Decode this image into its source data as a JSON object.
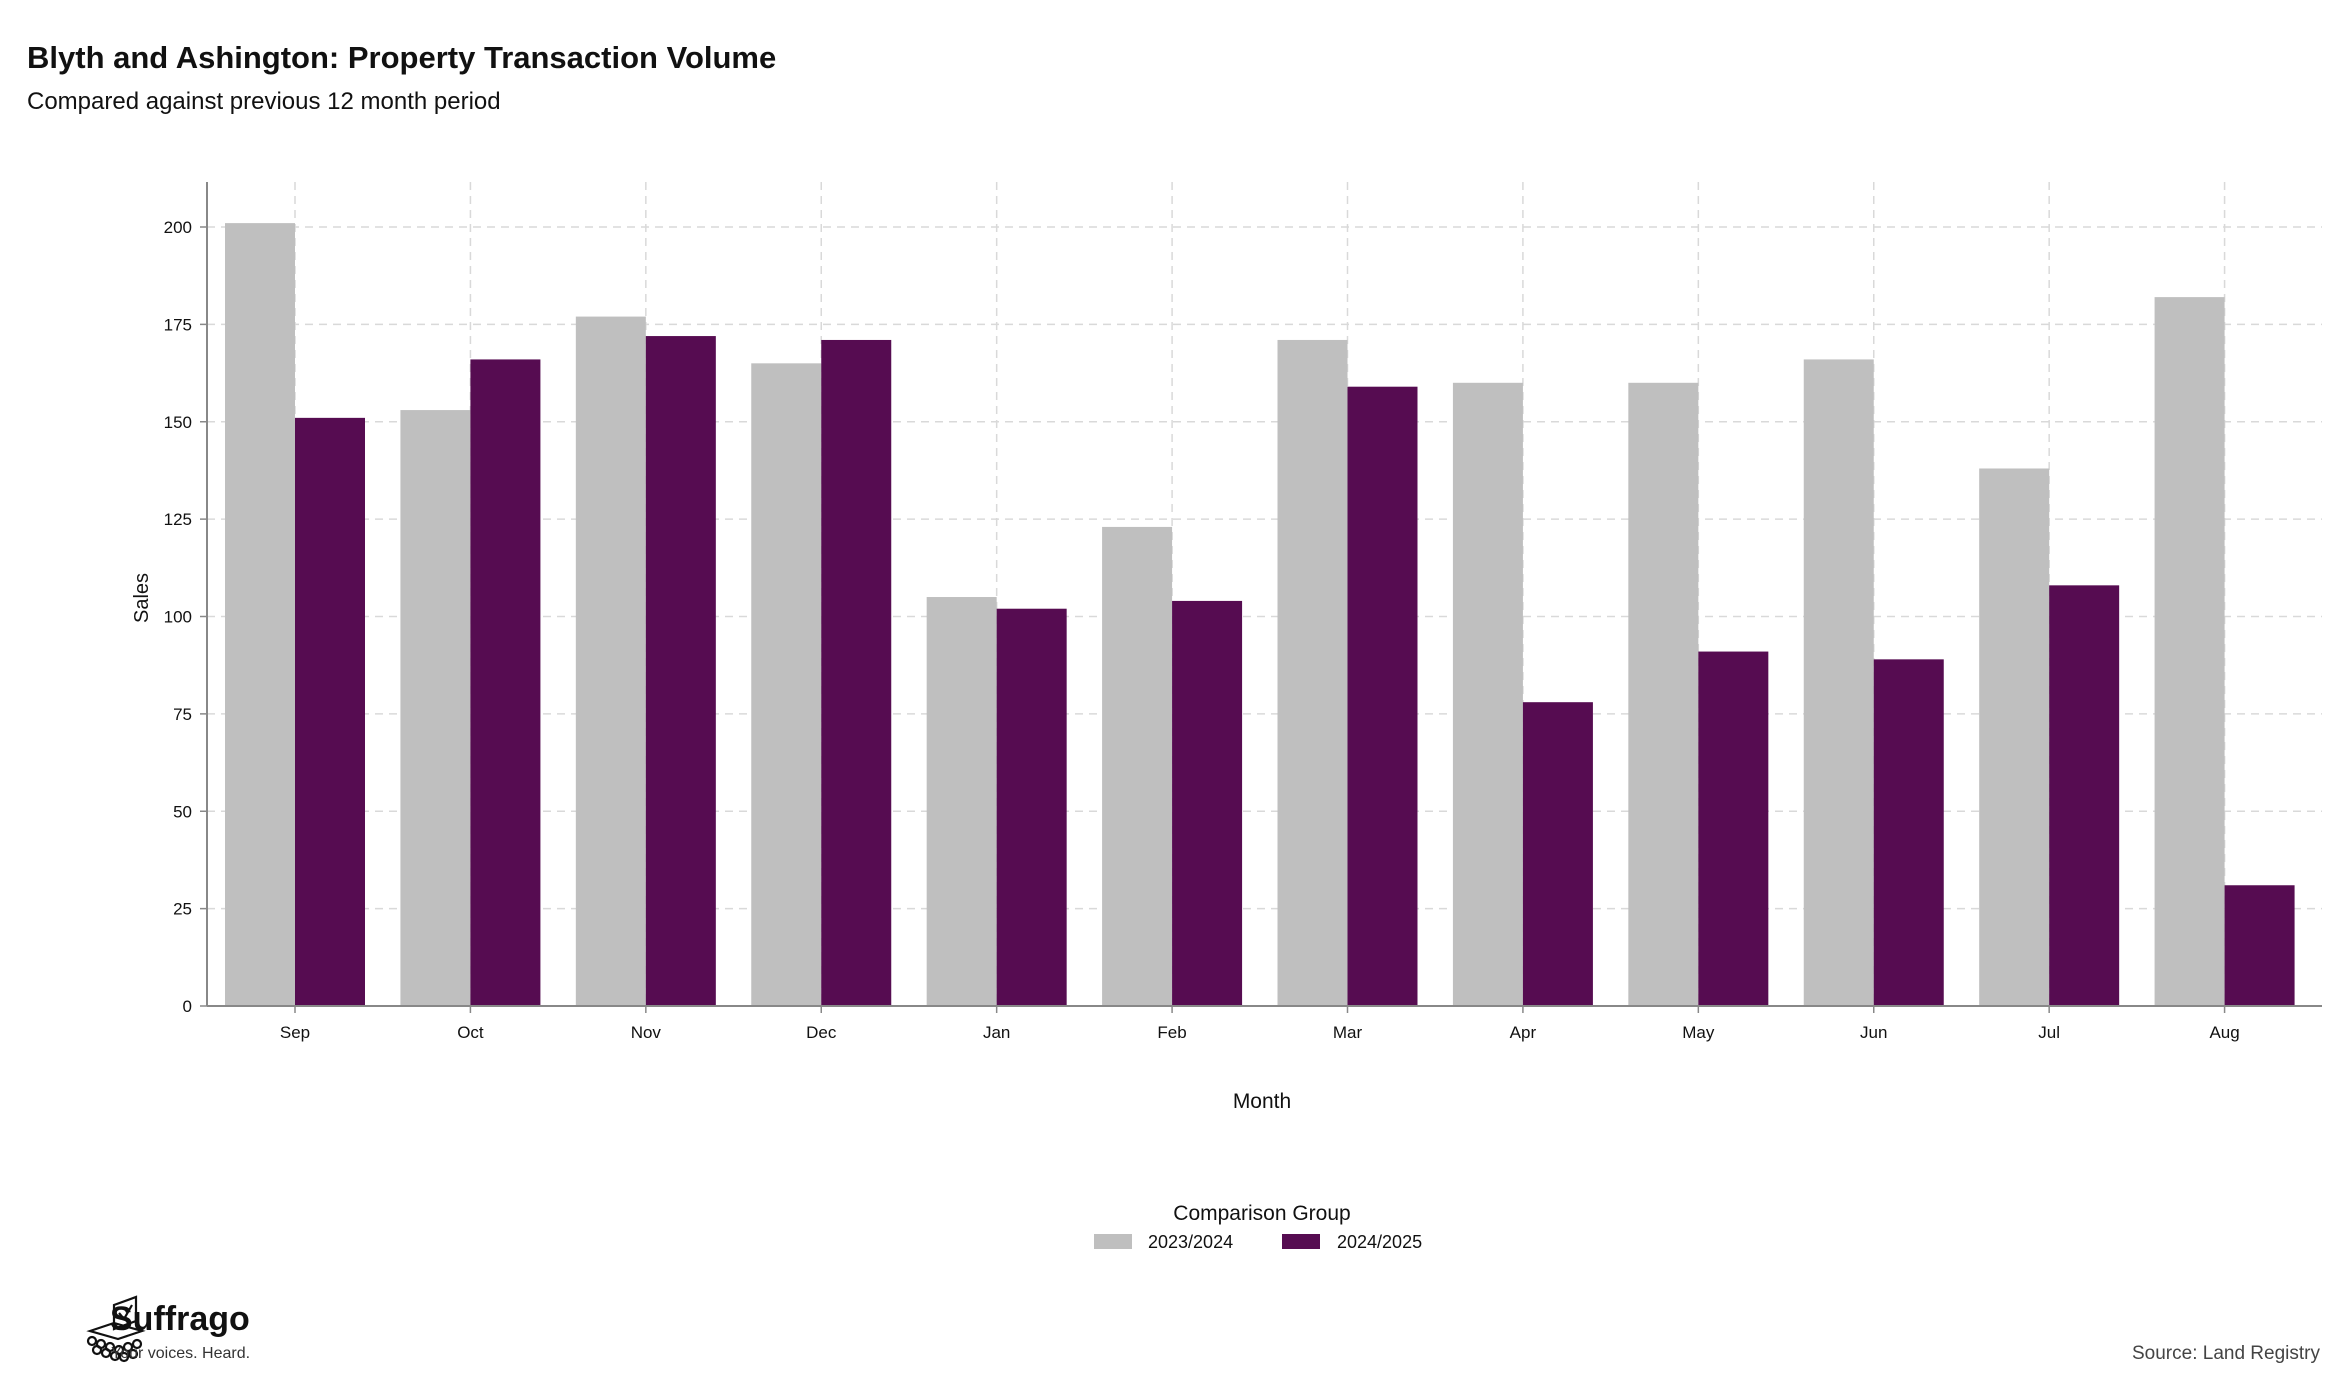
{
  "header": {
    "title": "Blyth and Ashington: Property Transaction Volume",
    "subtitle": "Compared against previous 12 month period"
  },
  "footer": {
    "brand": "Suffrago",
    "tagline": "Your voices. Heard.",
    "source": "Source: Land Registry"
  },
  "chart_data": {
    "type": "bar",
    "title": "Blyth and Ashington: Property Transaction Volume",
    "subtitle": "Compared against previous 12 month period",
    "xlabel": "Month",
    "ylabel": "Sales",
    "ylim": [
      0,
      210
    ],
    "yticks": [
      0,
      25,
      50,
      75,
      100,
      125,
      150,
      175,
      200
    ],
    "grid": true,
    "legend_title": "Comparison Group",
    "legend_position": "bottom",
    "categories": [
      "Sep",
      "Oct",
      "Nov",
      "Dec",
      "Jan",
      "Feb",
      "Mar",
      "Apr",
      "May",
      "Jun",
      "Jul",
      "Aug"
    ],
    "series": [
      {
        "name": "2023/2024",
        "color": "#bfbfbf",
        "values": [
          201,
          153,
          177,
          165,
          105,
          123,
          171,
          160,
          160,
          166,
          138,
          182
        ]
      },
      {
        "name": "2024/2025",
        "color": "#560c51",
        "values": [
          151,
          166,
          172,
          171,
          102,
          104,
          159,
          78,
          91,
          89,
          108,
          31
        ]
      }
    ]
  }
}
